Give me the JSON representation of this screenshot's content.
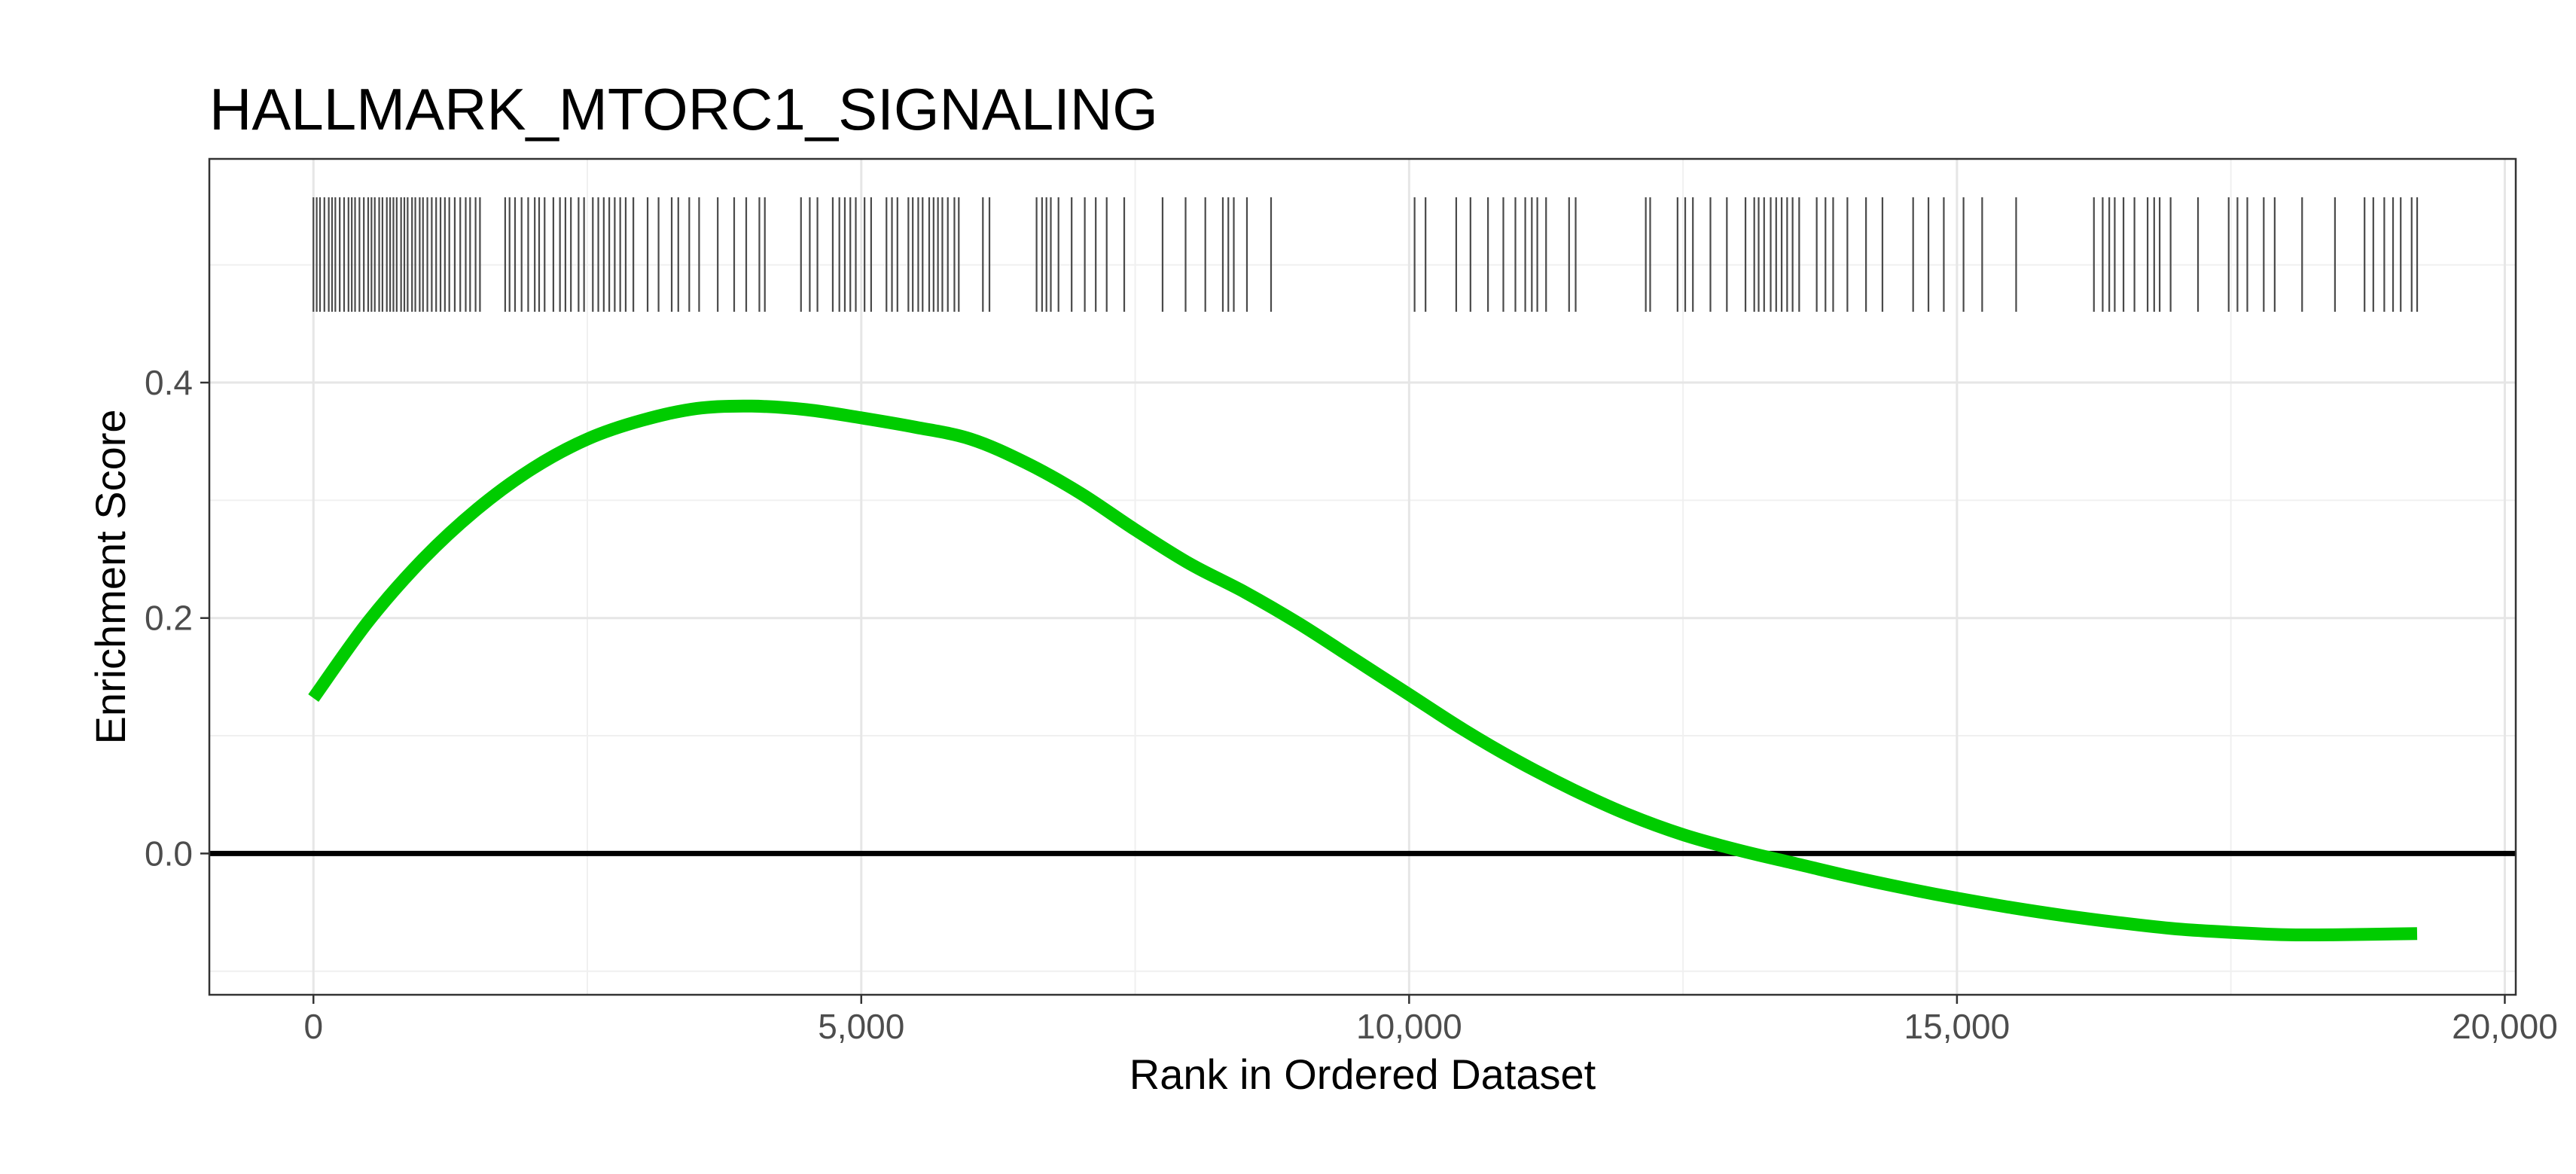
{
  "chart_data": {
    "type": "line",
    "title": "HALLMARK_MTORC1_SIGNALING",
    "xlabel": "Rank in Ordered Dataset",
    "ylabel": "Enrichment Score",
    "xlim": [
      -950,
      20100
    ],
    "ylim": [
      -0.12,
      0.59
    ],
    "x_ticks": [
      0,
      5000,
      10000,
      15000,
      20000
    ],
    "x_tick_labels": [
      "0",
      "5,000",
      "10,000",
      "15,000",
      "20,000"
    ],
    "y_ticks": [
      0.0,
      0.2,
      0.4
    ],
    "y_tick_labels": [
      "0.0",
      "0.2",
      "0.4"
    ],
    "grid": true,
    "zero_line": 0.0,
    "series": [
      {
        "color": "#00cc00",
        "x": [
          0,
          500,
          1000,
          1500,
          2000,
          2500,
          3000,
          3500,
          4000,
          4500,
          5000,
          5500,
          6000,
          6500,
          7000,
          7500,
          8000,
          8500,
          9000,
          9500,
          10000,
          10500,
          11000,
          11500,
          12000,
          12500,
          13000,
          13500,
          14000,
          14500,
          15000,
          15500,
          16000,
          16500,
          17000,
          17500,
          18000,
          18500,
          19200
        ],
        "y": [
          0.132,
          0.197,
          0.25,
          0.293,
          0.327,
          0.352,
          0.368,
          0.378,
          0.38,
          0.377,
          0.37,
          0.362,
          0.352,
          0.332,
          0.306,
          0.275,
          0.246,
          0.222,
          0.195,
          0.165,
          0.135,
          0.105,
          0.078,
          0.054,
          0.033,
          0.016,
          0.003,
          -0.008,
          -0.019,
          -0.029,
          -0.038,
          -0.046,
          -0.053,
          -0.059,
          -0.064,
          -0.067,
          -0.069,
          -0.069,
          -0.068
        ]
      }
    ],
    "hits": [
      0,
      30,
      60,
      100,
      140,
      170,
      200,
      240,
      280,
      320,
      350,
      380,
      420,
      460,
      500,
      530,
      560,
      600,
      630,
      670,
      700,
      730,
      760,
      800,
      830,
      860,
      900,
      930,
      970,
      1000,
      1040,
      1080,
      1120,
      1160,
      1200,
      1240,
      1290,
      1340,
      1390,
      1430,
      1480,
      1520,
      1750,
      1790,
      1840,
      1900,
      1960,
      2020,
      2060,
      2110,
      2190,
      2250,
      2300,
      2350,
      2420,
      2470,
      2550,
      2600,
      2650,
      2700,
      2750,
      2800,
      2850,
      2920,
      3050,
      3150,
      3270,
      3330,
      3430,
      3520,
      3690,
      3840,
      3950,
      4070,
      4120,
      4450,
      4530,
      4600,
      4740,
      4800,
      4850,
      4900,
      4950,
      5030,
      5090,
      5230,
      5280,
      5330,
      5430,
      5470,
      5520,
      5560,
      5620,
      5660,
      5700,
      5740,
      5790,
      5850,
      5890,
      6110,
      6170,
      6600,
      6650,
      6690,
      6730,
      6800,
      6920,
      7040,
      7140,
      7240,
      7400,
      7750,
      7960,
      8140,
      8300,
      8350,
      8400,
      8520,
      8740,
      10050,
      10150,
      10430,
      10560,
      10720,
      10860,
      10970,
      11060,
      11120,
      11170,
      11250,
      11460,
      11520,
      12160,
      12200,
      12450,
      12520,
      12590,
      12750,
      12900,
      13070,
      13150,
      13190,
      13240,
      13300,
      13350,
      13400,
      13450,
      13500,
      13560,
      13720,
      13800,
      13870,
      14000,
      14170,
      14320,
      14600,
      14740,
      14880,
      15060,
      15230,
      15540,
      16250,
      16330,
      16390,
      16440,
      16520,
      16620,
      16740,
      16800,
      16850,
      16950,
      17200,
      17480,
      17560,
      17650,
      17800,
      17900,
      18150,
      18450,
      18720,
      18800,
      18900,
      18980,
      19050,
      19150,
      19200
    ]
  }
}
